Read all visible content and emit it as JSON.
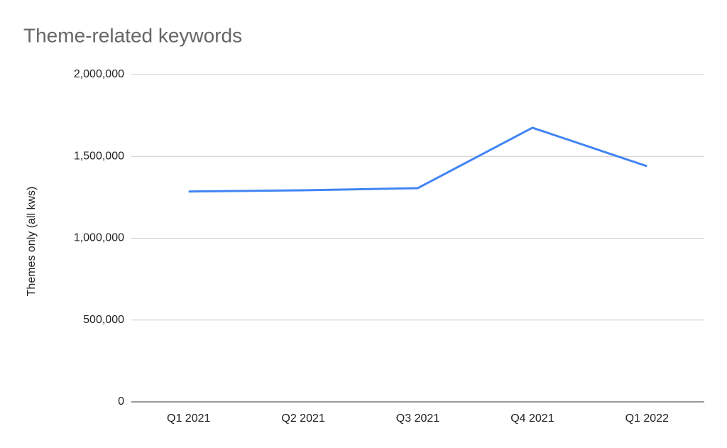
{
  "chart_data": {
    "type": "line",
    "title": "Theme-related keywords",
    "y_label": "Themes only (all kws)",
    "categories": [
      "Q1 2021",
      "Q2 2021",
      "Q3 2021",
      "Q4 2021",
      "Q1 2022"
    ],
    "series": [
      {
        "name": "Themes only (all kws)",
        "color": "#4285f4",
        "values": [
          1285000,
          1293000,
          1306000,
          1675000,
          1440000
        ]
      }
    ],
    "ylim": [
      0,
      2000000
    ],
    "yticks": [
      0,
      {
        "value": 500000,
        "label": "500,000"
      },
      {
        "value": 1000000,
        "label": "1,000,000"
      },
      {
        "value": 1500000,
        "label": "1,500,000"
      },
      {
        "value": 2000000,
        "label": "2,000,000"
      }
    ],
    "grid": true
  }
}
